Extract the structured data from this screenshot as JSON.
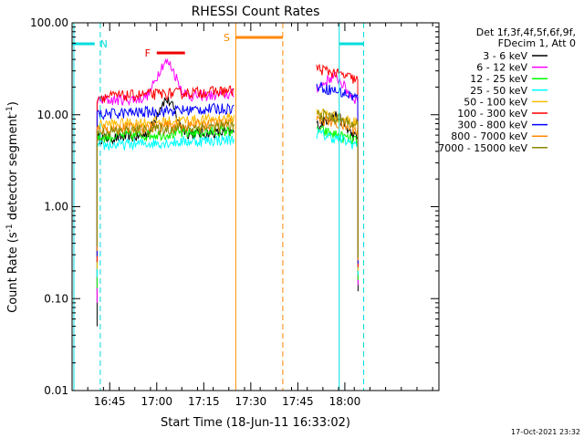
{
  "chart_data": {
    "type": "line",
    "title": "RHESSI Count Rates",
    "xlabel": "Start Time (18-Jun-11 16:33:02)",
    "ylabel_parts": {
      "pre": "Count Rate (s",
      "sup": "-1",
      "post": " detector segment",
      "sup2": "-1",
      "end": ")"
    },
    "y_scale": "log",
    "ylim": [
      0.01,
      100
    ],
    "y_ticks": [
      {
        "value": 100,
        "label": "100.00"
      },
      {
        "value": 10,
        "label": "10.00"
      },
      {
        "value": 1,
        "label": "1.00"
      },
      {
        "value": 0.1,
        "label": "0.10"
      },
      {
        "value": 0.01,
        "label": "0.01"
      }
    ],
    "x_range_minutes": [
      16.55,
      18.5
    ],
    "x_ticks": [
      {
        "value": 16.75,
        "label": "16:45"
      },
      {
        "value": 17.0,
        "label": "17:00"
      },
      {
        "value": 17.25,
        "label": "17:15"
      },
      {
        "value": 17.5,
        "label": "17:30"
      },
      {
        "value": 17.75,
        "label": "17:45"
      },
      {
        "value": 18.0,
        "label": "18:00"
      }
    ],
    "legend_header": [
      "Det 1f,3f,4f,5f,6f,9f,",
      "FDecim 1, Att 0"
    ],
    "segments": [
      [
        16.683,
        17.41
      ],
      [
        17.85,
        18.07
      ]
    ],
    "series": [
      {
        "name": "3 - 6 keV",
        "color": "#000000",
        "level1": 6.0,
        "level2": 6.5
      },
      {
        "name": "6 - 12 keV",
        "color": "#ff00ff",
        "level1": 15.5,
        "level2": 17.0
      },
      {
        "name": "12 - 25 keV",
        "color": "#00ff00",
        "level1": 6.2,
        "level2": 6.0
      },
      {
        "name": "25 - 50 keV",
        "color": "#00ffff",
        "level1": 5.0,
        "level2": 5.5
      },
      {
        "name": "50 - 100 keV",
        "color": "#ffbb00",
        "level1": 8.5,
        "level2": 9.5
      },
      {
        "name": "100 - 300 keV",
        "color": "#ff0000",
        "level1": 17.0,
        "level2": 28.0
      },
      {
        "name": "300 - 800 keV",
        "color": "#0000ff",
        "level1": 11.0,
        "level2": 18.0
      },
      {
        "name": "800 - 7000 keV",
        "color": "#ff8800",
        "level1": 7.5,
        "level2": 8.0
      },
      {
        "name": "7000 - 15000 keV",
        "color": "#888800",
        "level1": 7.0,
        "level2": 9.0
      }
    ],
    "markers": [
      {
        "label": "N",
        "color": "#00dddd",
        "x1": 16.55,
        "x2": 16.67,
        "dash_x": 16.7,
        "solid_x": null
      },
      {
        "label": "F",
        "color": "#ee0000",
        "x1": 17.0,
        "x2": 17.15
      },
      {
        "label": "S",
        "color": "#ff8800",
        "x1": 17.42,
        "x2": 17.67,
        "solid_x": 17.42,
        "dash_x": 17.67
      },
      {
        "label": "",
        "color": "#00dddd",
        "x1": 17.97,
        "x2": 18.1,
        "solid_x": 17.97,
        "dash_x": 18.1
      }
    ]
  },
  "footer": {
    "timestamp": "17-Oct-2021 23:32"
  }
}
